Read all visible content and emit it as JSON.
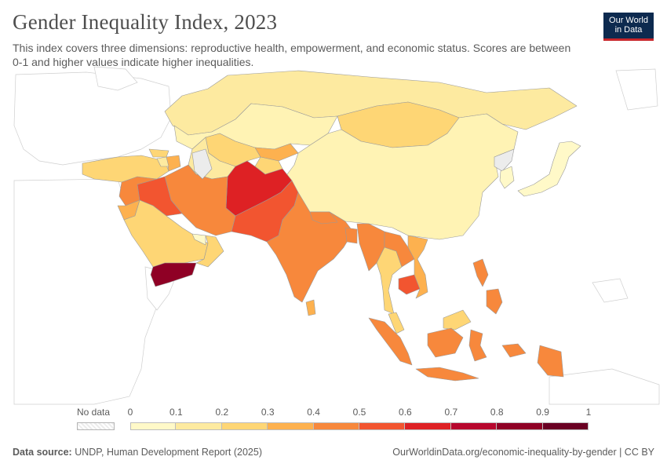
{
  "title": "Gender Inequality Index, 2023",
  "subtitle": "This index covers three dimensions: reproductive health, empowerment, and economic status. Scores are between 0-1 and higher values indicate higher inequalities.",
  "logo": {
    "line1": "Our World",
    "line2": "in Data"
  },
  "legend": {
    "nodata_label": "No data",
    "ticks": [
      "0",
      "0.1",
      "0.2",
      "0.3",
      "0.4",
      "0.5",
      "0.6",
      "0.7",
      "0.8",
      "0.9",
      "1"
    ],
    "bin_colors": [
      "#fff9c8",
      "#fdeaa0",
      "#fed675",
      "#fdb14f",
      "#f7883c",
      "#f25530",
      "#de2124",
      "#b7062d",
      "#8f0025",
      "#6a0023"
    ]
  },
  "colors": {
    "nodata": "#ececec",
    "border": "#bdbdbd",
    "background_land": "#ffffff"
  },
  "footer": {
    "source_label": "Data source:",
    "source_text": "UNDP, Human Development Report (2025)",
    "right_text": "OurWorldinData.org/economic-inequality-by-gender | CC BY"
  },
  "chart_data": {
    "type": "choropleth",
    "region": "Asia",
    "year": 2023,
    "indicator": "Gender Inequality Index",
    "scale": {
      "min": 0,
      "max": 1,
      "bins": [
        0,
        0.1,
        0.2,
        0.3,
        0.4,
        0.5,
        0.6,
        0.7,
        0.8,
        0.9,
        1
      ]
    },
    "countries": [
      {
        "name": "Russia",
        "value": 0.18
      },
      {
        "name": "Kazakhstan",
        "value": 0.15
      },
      {
        "name": "Mongolia",
        "value": 0.28
      },
      {
        "name": "China",
        "value": 0.15
      },
      {
        "name": "Japan",
        "value": 0.06
      },
      {
        "name": "South Korea",
        "value": 0.06
      },
      {
        "name": "Uzbekistan",
        "value": 0.24
      },
      {
        "name": "Turkmenistan",
        "value": 0.18
      },
      {
        "name": "Kyrgyzstan",
        "value": 0.32
      },
      {
        "name": "Tajikistan",
        "value": 0.26
      },
      {
        "name": "Afghanistan",
        "value": 0.66
      },
      {
        "name": "Pakistan",
        "value": 0.53
      },
      {
        "name": "Iran",
        "value": 0.46
      },
      {
        "name": "Iraq",
        "value": 0.54
      },
      {
        "name": "Syria",
        "value": 0.47
      },
      {
        "name": "Turkey",
        "value": 0.26
      },
      {
        "name": "Saudi Arabia",
        "value": 0.23
      },
      {
        "name": "Yemen",
        "value": 0.82
      },
      {
        "name": "Oman",
        "value": 0.26
      },
      {
        "name": "United Arab Emirates",
        "value": 0.04
      },
      {
        "name": "India",
        "value": 0.44
      },
      {
        "name": "Nepal",
        "value": 0.48
      },
      {
        "name": "Bangladesh",
        "value": 0.48
      },
      {
        "name": "Sri Lanka",
        "value": 0.38
      },
      {
        "name": "Myanmar",
        "value": 0.48
      },
      {
        "name": "Thailand",
        "value": 0.31
      },
      {
        "name": "Laos",
        "value": 0.47
      },
      {
        "name": "Vietnam",
        "value": 0.38
      },
      {
        "name": "Cambodia",
        "value": 0.56
      },
      {
        "name": "Malaysia",
        "value": 0.21
      },
      {
        "name": "Philippines",
        "value": 0.41
      },
      {
        "name": "Indonesia",
        "value": 0.42
      },
      {
        "name": "Papua New Guinea",
        "value": 0.53
      },
      {
        "name": "Georgia",
        "value": 0.28
      },
      {
        "name": "Armenia",
        "value": 0.18
      },
      {
        "name": "Azerbaijan",
        "value": 0.33
      }
    ]
  }
}
